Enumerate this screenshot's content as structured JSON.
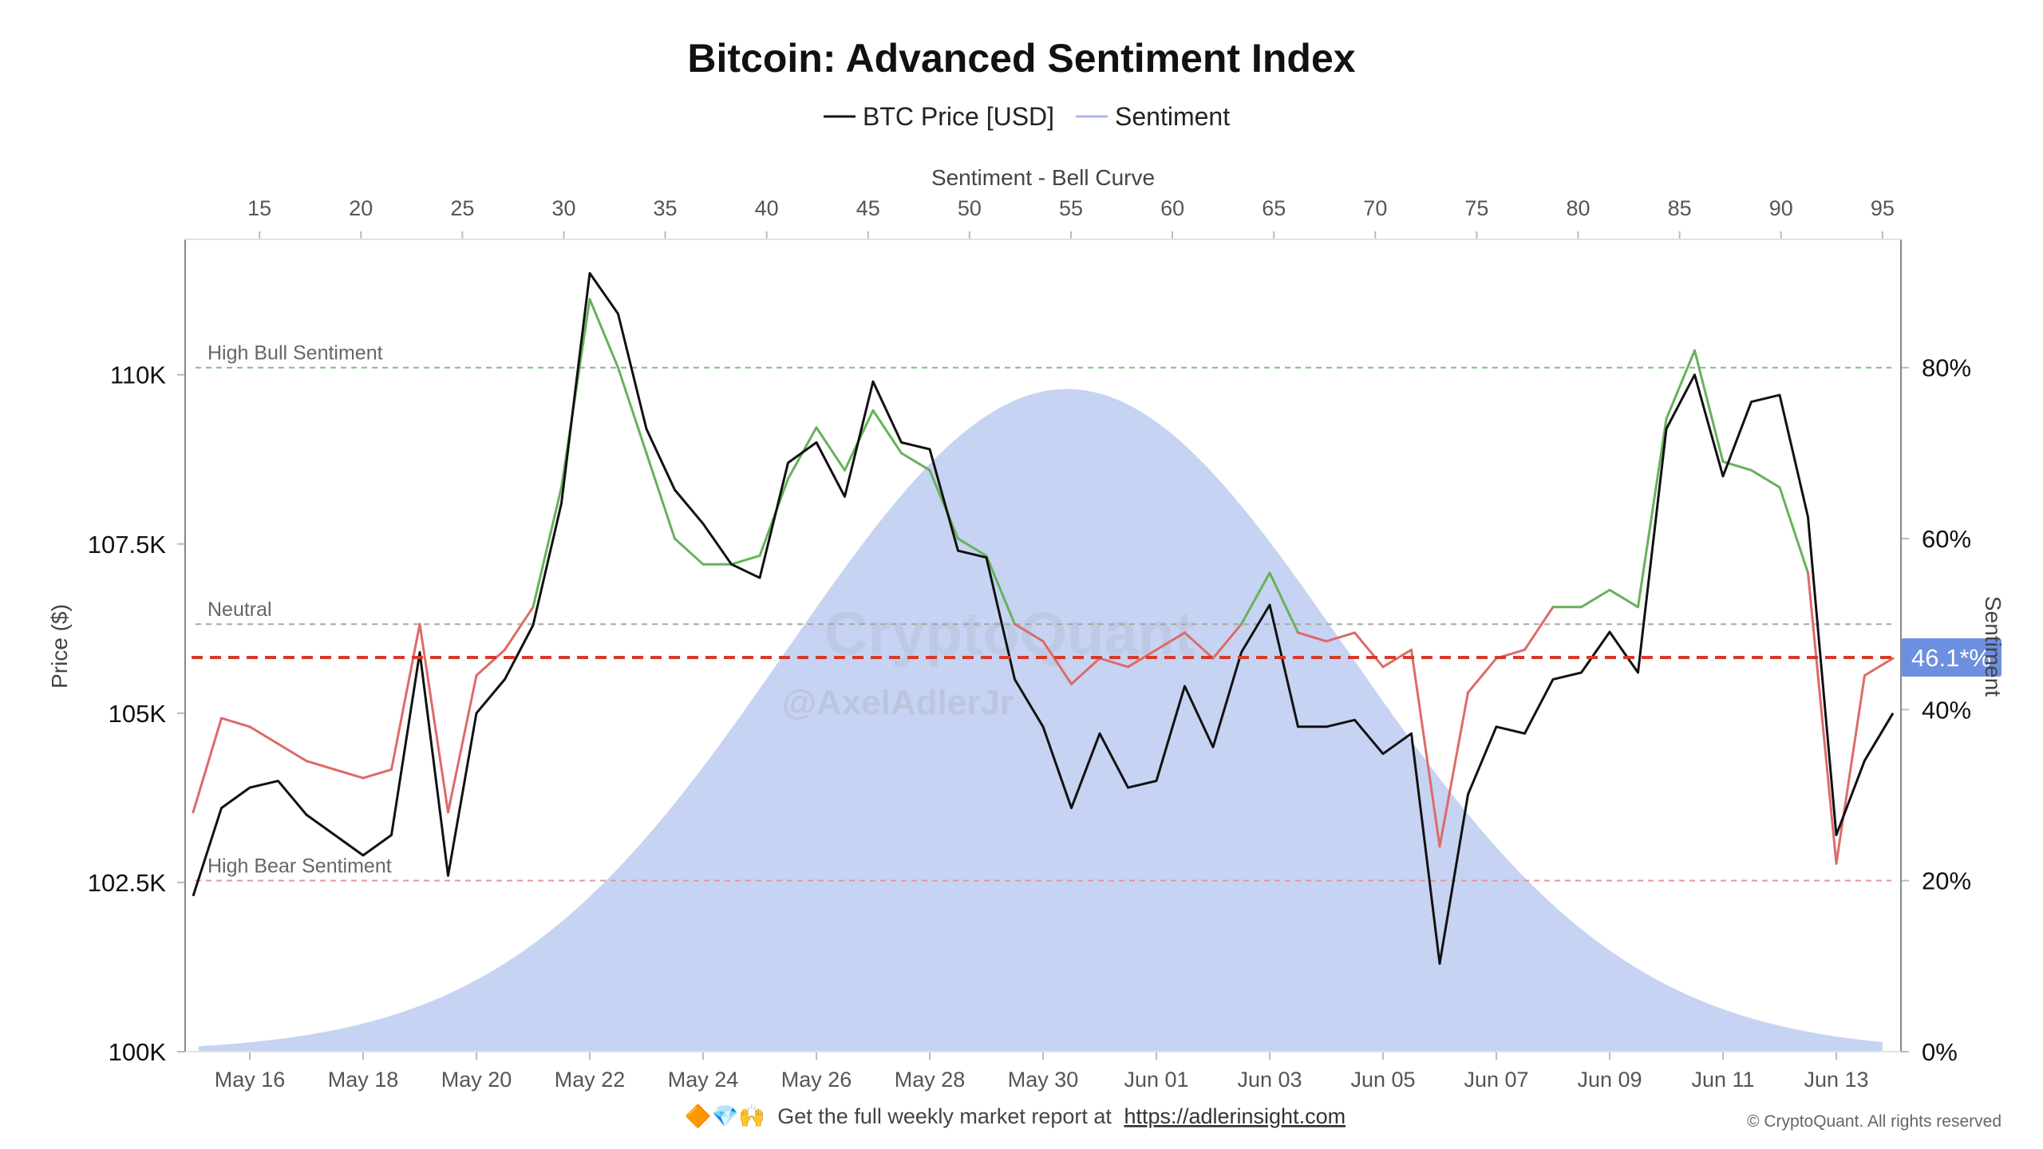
{
  "chart_data": {
    "type": "line",
    "title": "Bitcoin: Advanced Sentiment Index",
    "legend": {
      "placement": "top-center",
      "entries": [
        {
          "name": "BTC Price [USD]",
          "color": "#111111"
        },
        {
          "name": "Sentiment",
          "color": "#a9b8ec"
        }
      ]
    },
    "top_axis": {
      "label": "Sentiment - Bell Curve",
      "range": [
        13.5,
        96.5
      ],
      "ticks": [
        15,
        20,
        25,
        30,
        35,
        40,
        45,
        50,
        55,
        60,
        65,
        70,
        75,
        80,
        85,
        90,
        95
      ],
      "tick_labels": [
        "15",
        "20",
        "25",
        "30",
        "35",
        "40",
        "45",
        "50",
        "55",
        "60",
        "65",
        "70",
        "75",
        "80",
        "85",
        "90",
        "95"
      ]
    },
    "x_axis": {
      "range": [
        "2025-05-15",
        "2025-06-14"
      ],
      "tick_labels": [
        "May 16",
        "May 18",
        "May 20",
        "May 22",
        "May 24",
        "May 26",
        "May 28",
        "May 30",
        "Jun 01",
        "Jun 03",
        "Jun 05",
        "Jun 07",
        "Jun 09",
        "Jun 11",
        "Jun 13"
      ],
      "tick_values": [
        "2025-05-16",
        "2025-05-18",
        "2025-05-20",
        "2025-05-22",
        "2025-05-24",
        "2025-05-26",
        "2025-05-28",
        "2025-05-30",
        "2025-06-01",
        "2025-06-03",
        "2025-06-05",
        "2025-06-07",
        "2025-06-09",
        "2025-06-11",
        "2025-06-13"
      ]
    },
    "y_left": {
      "label": "Price ($)",
      "range": [
        100000,
        112000
      ],
      "ticks": [
        100000,
        102500,
        105000,
        107500,
        110000
      ],
      "tick_labels": [
        "100K",
        "102.5K",
        "105K",
        "107.5K",
        "110K"
      ]
    },
    "y_right": {
      "label": "Sentiment",
      "range": [
        0,
        95
      ],
      "ticks": [
        0,
        20,
        40,
        60,
        80
      ],
      "tick_labels": [
        "0%",
        "20%",
        "40%",
        "60%",
        "80%"
      ]
    },
    "reference_lines": [
      {
        "label": "High Bull Sentiment",
        "value": 80,
        "color": "#7cc17a"
      },
      {
        "label": "Neutral",
        "value": 50,
        "color": "#a8a8a8"
      },
      {
        "label": "High Bear Sentiment",
        "value": 20,
        "color": "#e09a9a"
      }
    ],
    "current_value": {
      "label": "46.1*%",
      "value": 46.1,
      "line_color": "#d63a2a",
      "badge_color": "#6d8fe0"
    },
    "sentiment_coloring": {
      "above_neutral": "#66b25a",
      "below_neutral": "#dc6b67"
    },
    "bell_curve": {
      "color": "#c7d3f2",
      "mean": 54.8,
      "sd": 13.8,
      "peak": 77.5
    },
    "series": [
      {
        "name": "BTC Price [USD]",
        "color": "#111111",
        "x": [
          "2025-05-15T00:00",
          "2025-05-15T12:00",
          "2025-05-16T00:00",
          "2025-05-16T12:00",
          "2025-05-17T00:00",
          "2025-05-17T12:00",
          "2025-05-18T00:00",
          "2025-05-18T12:00",
          "2025-05-19T00:00",
          "2025-05-19T12:00",
          "2025-05-20T00:00",
          "2025-05-20T12:00",
          "2025-05-21T00:00",
          "2025-05-21T12:00",
          "2025-05-22T00:00",
          "2025-05-22T12:00",
          "2025-05-23T00:00",
          "2025-05-23T12:00",
          "2025-05-24T00:00",
          "2025-05-24T12:00",
          "2025-05-25T00:00",
          "2025-05-25T12:00",
          "2025-05-26T00:00",
          "2025-05-26T12:00",
          "2025-05-27T00:00",
          "2025-05-27T12:00",
          "2025-05-28T00:00",
          "2025-05-28T12:00",
          "2025-05-29T00:00",
          "2025-05-29T12:00",
          "2025-05-30T00:00",
          "2025-05-30T12:00",
          "2025-05-31T00:00",
          "2025-05-31T12:00",
          "2025-06-01T00:00",
          "2025-06-01T12:00",
          "2025-06-02T00:00",
          "2025-06-02T12:00",
          "2025-06-03T00:00",
          "2025-06-03T12:00",
          "2025-06-04T00:00",
          "2025-06-04T12:00",
          "2025-06-05T00:00",
          "2025-06-05T12:00",
          "2025-06-06T00:00",
          "2025-06-06T12:00",
          "2025-06-07T00:00",
          "2025-06-07T12:00",
          "2025-06-08T00:00",
          "2025-06-08T12:00",
          "2025-06-09T00:00",
          "2025-06-09T12:00",
          "2025-06-10T00:00",
          "2025-06-10T12:00",
          "2025-06-11T00:00",
          "2025-06-11T12:00",
          "2025-06-12T00:00",
          "2025-06-12T12:00",
          "2025-06-13T00:00",
          "2025-06-13T12:00",
          "2025-06-14T00:00"
        ],
        "values": [
          102300,
          103600,
          103900,
          104000,
          103500,
          103200,
          102900,
          103200,
          105900,
          102600,
          105000,
          105500,
          106300,
          108100,
          111500,
          110900,
          109200,
          108300,
          107800,
          107200,
          107000,
          108700,
          109000,
          108200,
          109900,
          109000,
          108900,
          107400,
          107300,
          105500,
          104800,
          103600,
          104700,
          103900,
          104000,
          105400,
          104500,
          105900,
          106600,
          104800,
          104800,
          104900,
          104400,
          104700,
          101300,
          103800,
          104800,
          104700,
          105500,
          105600,
          106200,
          105600,
          109200,
          110000,
          108500,
          109600,
          109700,
          107900,
          103200,
          104300,
          105000
        ]
      },
      {
        "name": "Sentiment",
        "x": [
          "2025-05-15T00:00",
          "2025-05-15T12:00",
          "2025-05-16T00:00",
          "2025-05-16T12:00",
          "2025-05-17T00:00",
          "2025-05-17T12:00",
          "2025-05-18T00:00",
          "2025-05-18T12:00",
          "2025-05-19T00:00",
          "2025-05-19T12:00",
          "2025-05-20T00:00",
          "2025-05-20T12:00",
          "2025-05-21T00:00",
          "2025-05-21T12:00",
          "2025-05-22T00:00",
          "2025-05-22T12:00",
          "2025-05-23T00:00",
          "2025-05-23T12:00",
          "2025-05-24T00:00",
          "2025-05-24T12:00",
          "2025-05-25T00:00",
          "2025-05-25T12:00",
          "2025-05-26T00:00",
          "2025-05-26T12:00",
          "2025-05-27T00:00",
          "2025-05-27T12:00",
          "2025-05-28T00:00",
          "2025-05-28T12:00",
          "2025-05-29T00:00",
          "2025-05-29T12:00",
          "2025-05-30T00:00",
          "2025-05-30T12:00",
          "2025-05-31T00:00",
          "2025-05-31T12:00",
          "2025-06-01T00:00",
          "2025-06-01T12:00",
          "2025-06-02T00:00",
          "2025-06-02T12:00",
          "2025-06-03T00:00",
          "2025-06-03T12:00",
          "2025-06-04T00:00",
          "2025-06-04T12:00",
          "2025-06-05T00:00",
          "2025-06-05T12:00",
          "2025-06-06T00:00",
          "2025-06-06T12:00",
          "2025-06-07T00:00",
          "2025-06-07T12:00",
          "2025-06-08T00:00",
          "2025-06-08T12:00",
          "2025-06-09T00:00",
          "2025-06-09T12:00",
          "2025-06-10T00:00",
          "2025-06-10T12:00",
          "2025-06-11T00:00",
          "2025-06-11T12:00",
          "2025-06-12T00:00",
          "2025-06-12T12:00",
          "2025-06-13T00:00",
          "2025-06-13T12:00",
          "2025-06-14T00:00"
        ],
        "values": [
          28,
          39,
          38,
          36,
          34,
          33,
          32,
          33,
          50,
          28,
          44,
          47,
          52,
          66,
          88,
          80,
          70,
          60,
          57,
          57,
          58,
          67,
          73,
          68,
          75,
          70,
          68,
          60,
          58,
          50,
          48,
          43,
          46,
          45,
          47,
          49,
          46,
          50,
          56,
          49,
          48,
          49,
          45,
          47,
          24,
          42,
          46,
          47,
          52,
          52,
          54,
          52,
          74,
          82,
          69,
          68,
          66,
          56,
          22,
          44,
          46
        ]
      }
    ]
  },
  "footer": {
    "emoji": "🔶💎🙌",
    "text": "Get the full weekly market report at",
    "link": "https://adlerinsight.com",
    "copyright": "© CryptoQuant. All rights reserved"
  },
  "watermark": {
    "brand": "CryptoQuant",
    "handle": "@AxelAdlerJr"
  }
}
